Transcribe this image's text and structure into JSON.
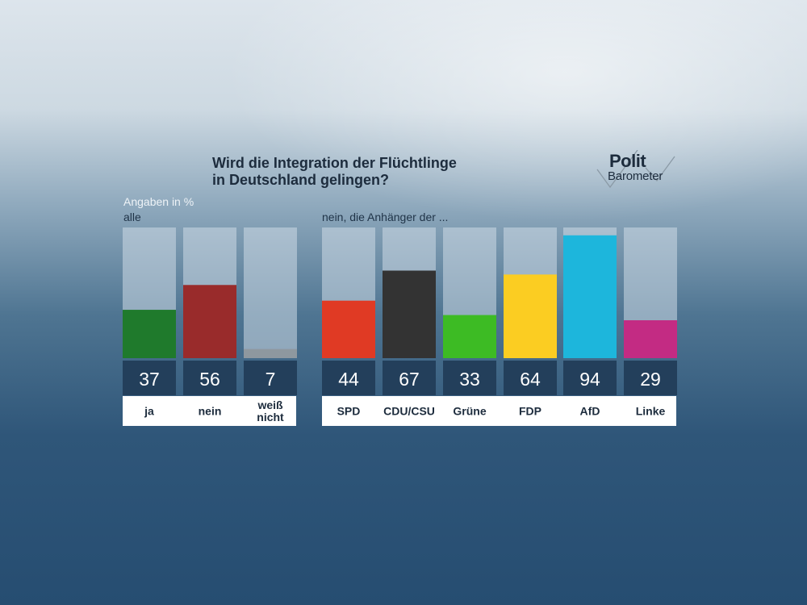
{
  "title_line1": "Wird die Integration der Flüchtlinge",
  "title_line2": "in Deutschland gelingen?",
  "logo": {
    "line1": "Polit",
    "line2": "Barometer"
  },
  "unit_label": "Angaben in %",
  "chart_data": [
    {
      "type": "bar",
      "title": "alle",
      "ylim": [
        0,
        100
      ],
      "categories": [
        [
          "ja"
        ],
        [
          "nein"
        ],
        [
          "weiß",
          "nicht"
        ]
      ],
      "values": [
        37,
        56,
        7
      ],
      "colors": [
        "#1f7a2c",
        "#992b2b",
        "#8e989f"
      ]
    },
    {
      "type": "bar",
      "title": "nein, die Anhänger der ...",
      "ylim": [
        0,
        100
      ],
      "categories": [
        [
          "SPD"
        ],
        [
          "CDU/CSU"
        ],
        [
          "Grüne"
        ],
        [
          "FDP"
        ],
        [
          "AfD"
        ],
        [
          "Linke"
        ]
      ],
      "values": [
        44,
        67,
        33,
        64,
        94,
        29
      ],
      "colors": [
        "#e03a24",
        "#333333",
        "#3dbb24",
        "#fbcd22",
        "#1db6dc",
        "#c32b83"
      ]
    }
  ]
}
